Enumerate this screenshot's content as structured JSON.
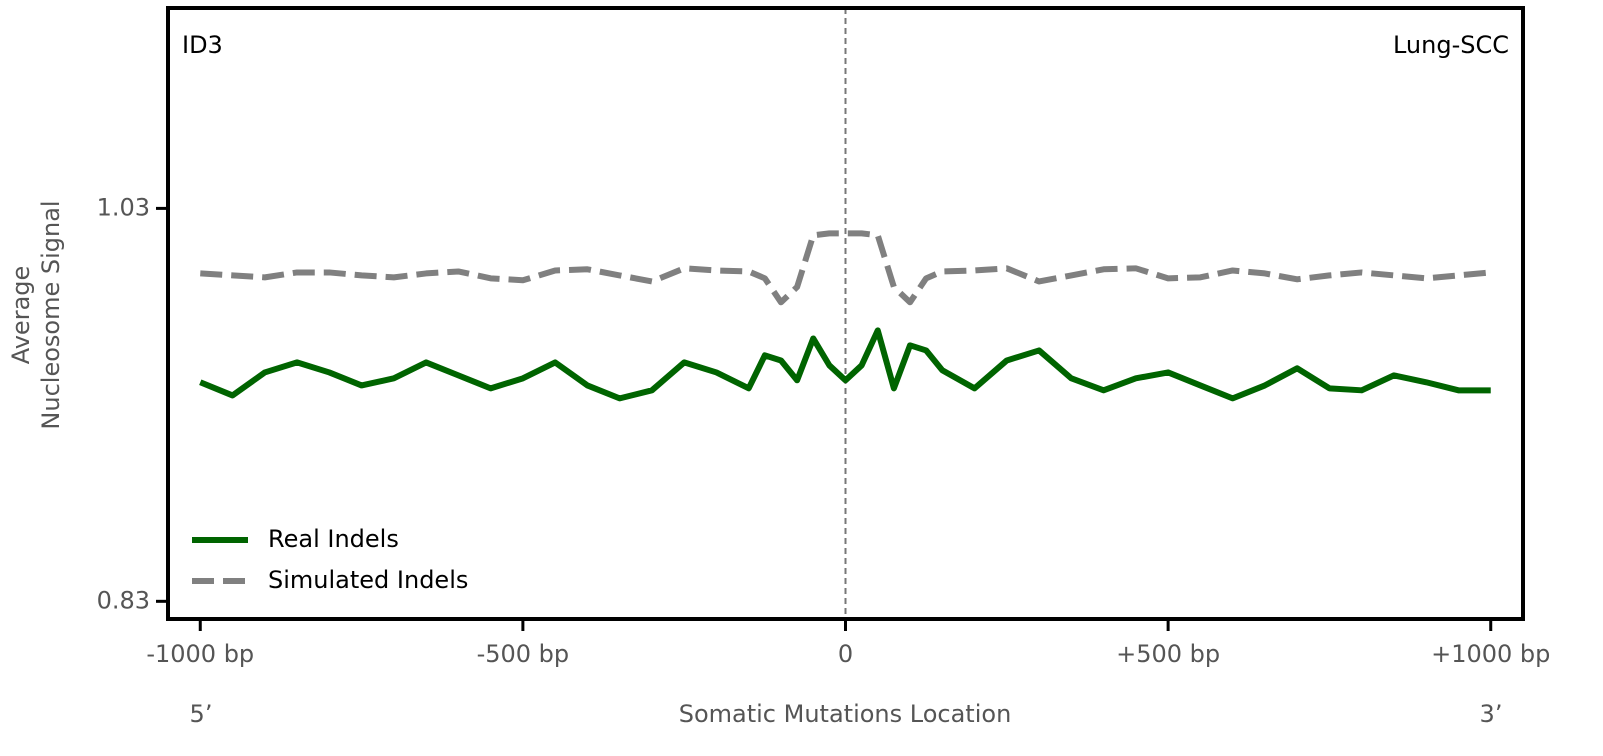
{
  "chart_data": {
    "type": "line",
    "annotations": [
      "ID3",
      "Lung-SCC"
    ],
    "xlabel": "Somatic Mutations Location",
    "ylabel": [
      "Average",
      "Nucleosome Signal"
    ],
    "end_labels": [
      "5’",
      "3’"
    ],
    "x": [
      -1000,
      -950,
      -900,
      -850,
      -800,
      -750,
      -700,
      -650,
      -600,
      -550,
      -500,
      -450,
      -400,
      -350,
      -300,
      -250,
      -200,
      -150,
      -125,
      -100,
      -75,
      -50,
      -25,
      0,
      25,
      50,
      75,
      100,
      125,
      150,
      200,
      250,
      300,
      350,
      400,
      450,
      500,
      550,
      600,
      650,
      700,
      750,
      800,
      850,
      900,
      950,
      1000
    ],
    "series": [
      {
        "name": "Real Indels",
        "color": "#006400",
        "dash": false,
        "values": [
          0.9415,
          0.9348,
          0.9465,
          0.9516,
          0.9465,
          0.9399,
          0.9435,
          0.9516,
          0.945,
          0.9384,
          0.9435,
          0.9516,
          0.9399,
          0.9333,
          0.9374,
          0.9516,
          0.9465,
          0.9384,
          0.9552,
          0.9526,
          0.9425,
          0.9638,
          0.9501,
          0.9425,
          0.9501,
          0.9679,
          0.9384,
          0.9603,
          0.9577,
          0.9476,
          0.9384,
          0.9526,
          0.9577,
          0.9435,
          0.9374,
          0.9435,
          0.9465,
          0.9399,
          0.9333,
          0.9399,
          0.9486,
          0.9384,
          0.9374,
          0.945,
          0.9415,
          0.9374,
          0.9374
        ]
      },
      {
        "name": "Simulated Indels",
        "color": "#808080",
        "dash": true,
        "values": [
          0.9969,
          0.9959,
          0.9949,
          0.9974,
          0.9974,
          0.9959,
          0.9949,
          0.9969,
          0.9979,
          0.9944,
          0.9934,
          0.9984,
          0.999,
          0.9959,
          0.9928,
          0.9995,
          0.9984,
          0.9979,
          0.9944,
          0.9822,
          0.99,
          1.0163,
          1.0173,
          1.0173,
          1.0173,
          1.0163,
          0.99,
          0.9822,
          0.9944,
          0.9979,
          0.9984,
          0.9995,
          0.9928,
          0.9959,
          0.999,
          0.9995,
          0.9944,
          0.9949,
          0.9984,
          0.9969,
          0.9939,
          0.9959,
          0.9974,
          0.9959,
          0.9944,
          0.9959,
          0.9974
        ]
      }
    ],
    "vline": 0,
    "xlim": [
      -1050,
      1050
    ],
    "ylim": [
      0.821,
      1.132
    ],
    "xticks": [
      {
        "value": -1000,
        "label": "-1000 bp"
      },
      {
        "value": -500,
        "label": "-500 bp"
      },
      0,
      {
        "value": 500,
        "label": "+500 bp"
      },
      {
        "value": 1000,
        "label": "+1000 bp"
      }
    ],
    "yticks": [
      0.83,
      1.03
    ],
    "grid": false,
    "legend": "lower left"
  }
}
